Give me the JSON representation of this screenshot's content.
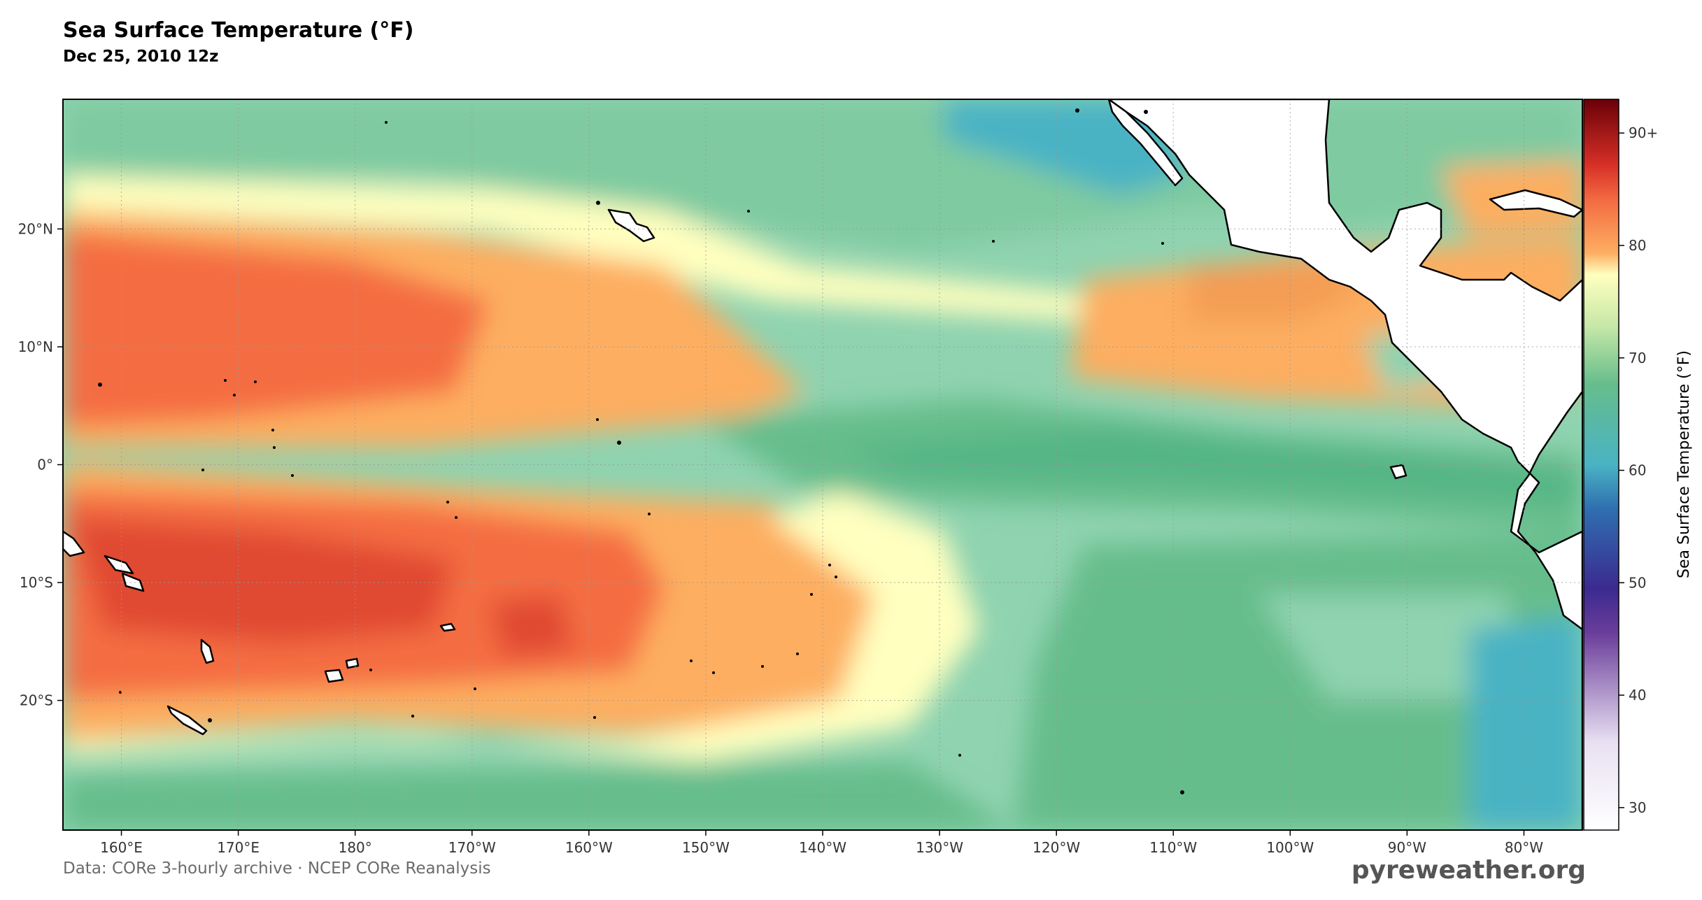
{
  "title": "Sea Surface Temperature (°F)",
  "subtitle": "Dec 25, 2010 12z",
  "footer": {
    "source": "Data: CORe 3-hourly archive  ·  NCEP CORe Reanalysis",
    "brand": "pyreweather.org"
  },
  "map": {
    "projection": "PlateCarree",
    "lon_range": [
      155,
      285
    ],
    "lat_range": [
      -31,
      31
    ],
    "gridlines": true,
    "x_ticks": [
      {
        "lon": 160,
        "label": "160°E"
      },
      {
        "lon": 170,
        "label": "170°E"
      },
      {
        "lon": 180,
        "label": "180°"
      },
      {
        "lon": 190,
        "label": "170°W"
      },
      {
        "lon": 200,
        "label": "160°W"
      },
      {
        "lon": 210,
        "label": "150°W"
      },
      {
        "lon": 220,
        "label": "140°W"
      },
      {
        "lon": 230,
        "label": "130°W"
      },
      {
        "lon": 240,
        "label": "120°W"
      },
      {
        "lon": 250,
        "label": "110°W"
      },
      {
        "lon": 260,
        "label": "100°W"
      },
      {
        "lon": 270,
        "label": "90°W"
      },
      {
        "lon": 280,
        "label": "80°W"
      }
    ],
    "y_ticks": [
      {
        "lat": 20,
        "label": "20°N"
      },
      {
        "lat": 10,
        "label": "10°N"
      },
      {
        "lat": 0,
        "label": "0°"
      },
      {
        "lat": -10,
        "label": "10°S"
      },
      {
        "lat": -20,
        "label": "20°S"
      }
    ]
  },
  "colorbar": {
    "label": "Sea Surface Temperature (°F)",
    "range": [
      28,
      93
    ],
    "ticks": [
      {
        "value": 30,
        "label": "30"
      },
      {
        "value": 40,
        "label": "40"
      },
      {
        "value": 50,
        "label": "50"
      },
      {
        "value": 60,
        "label": "60"
      },
      {
        "value": 70,
        "label": "70"
      },
      {
        "value": 80,
        "label": "80"
      },
      {
        "value": 90,
        "label": "90+"
      }
    ],
    "colors": {
      "warmest": "#6a0008",
      "hot": "#d73027",
      "warm": "#f46d43",
      "orange": "#fdae61",
      "pale": "#ffffbf",
      "light_green": "#c7e8a8",
      "green": "#66bd8c",
      "teal": "#4ab3c4",
      "blue": "#2f6fb0",
      "indigo": "#3b2a8f",
      "purple": "#6a3d9a",
      "pale_purple": "#e8e0f2"
    }
  },
  "land_color": "#ffffff",
  "coast_color": "#000000"
}
